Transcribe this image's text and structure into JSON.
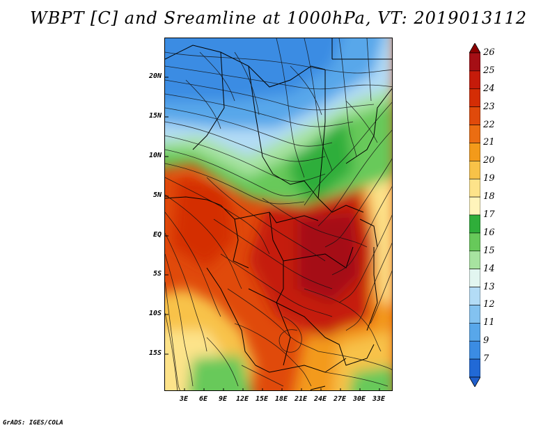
{
  "title": "WBPT [C] and Sreamline at 1000hPa, VT: 2019013112",
  "footer": "GrADS: IGES/COLA",
  "map": {
    "lat_labels": [
      "20N",
      "15N",
      "10N",
      "5N",
      "EQ",
      "5S",
      "10S",
      "15S"
    ],
    "lon_labels": [
      "3E",
      "6E",
      "9E",
      "12E",
      "15E",
      "18E",
      "21E",
      "24E",
      "27E",
      "30E",
      "33E"
    ]
  },
  "colorbar": {
    "labels": [
      "26",
      "25",
      "24",
      "23",
      "22",
      "21",
      "20",
      "19",
      "18",
      "17",
      "16",
      "15",
      "14",
      "13",
      "12",
      "11",
      "9",
      "7"
    ],
    "colors": [
      "#a50f15",
      "#c51b0a",
      "#d42d05",
      "#e04a0b",
      "#eb6d12",
      "#f39a1a",
      "#f8c248",
      "#fde38a",
      "#fff4bb",
      "#2fae3a",
      "#67c95a",
      "#a7e3a0",
      "#e2f6f0",
      "#b3dcf6",
      "#83c2f0",
      "#58a7ea",
      "#3b8ce3",
      "#2169d6"
    ],
    "tip_top_color": "#8b0000",
    "tip_bottom_color": "#1f5fcc"
  }
}
